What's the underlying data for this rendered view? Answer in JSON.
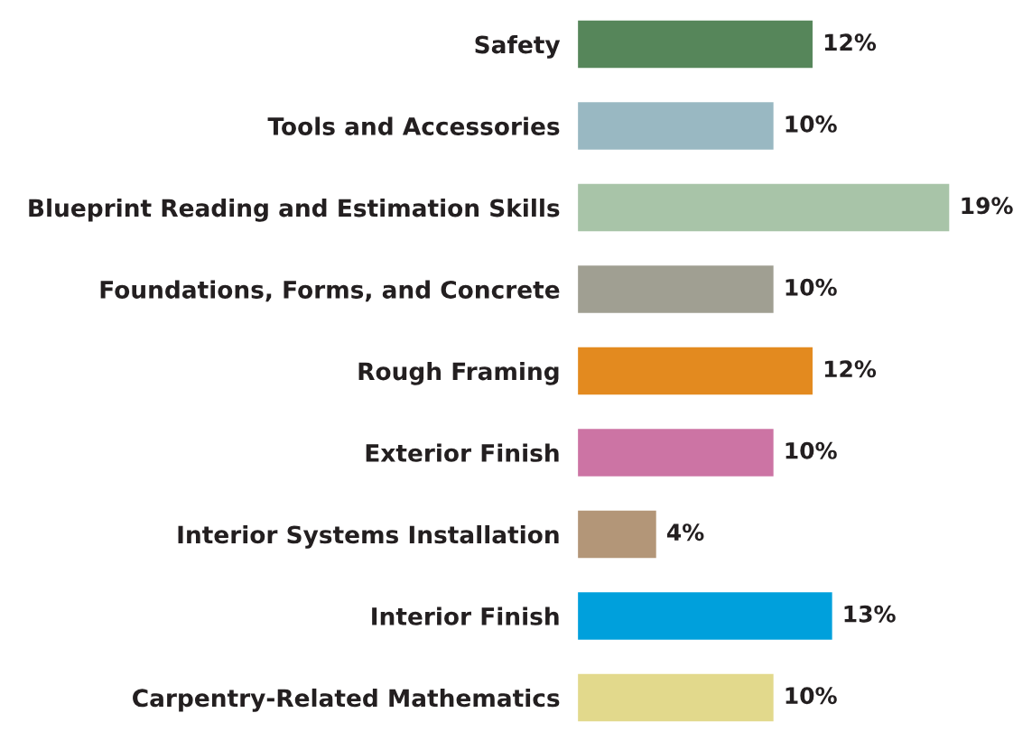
{
  "chart_data": {
    "type": "bar",
    "orientation": "horizontal",
    "categories": [
      "Safety",
      "Tools and Accessories",
      "Blueprint Reading and Estimation Skills",
      "Foundations, Forms, and Concrete",
      "Rough Framing",
      "Exterior Finish",
      "Interior Systems Installation",
      "Interior Finish",
      "Carpentry-Related Mathematics"
    ],
    "values": [
      12,
      10,
      19,
      10,
      12,
      10,
      4,
      13,
      10
    ],
    "colors": [
      "#56865a",
      "#99b8c2",
      "#a8c4a8",
      "#a09f92",
      "#e38a1f",
      "#cc74a4",
      "#b39678",
      "#00a0dc",
      "#e2d98c"
    ],
    "value_labels": [
      "12%",
      "10%",
      "19%",
      "10%",
      "12%",
      "10%",
      "4%",
      "13%",
      "10%"
    ],
    "grid": false,
    "legend": false,
    "tick_labels": "y"
  }
}
